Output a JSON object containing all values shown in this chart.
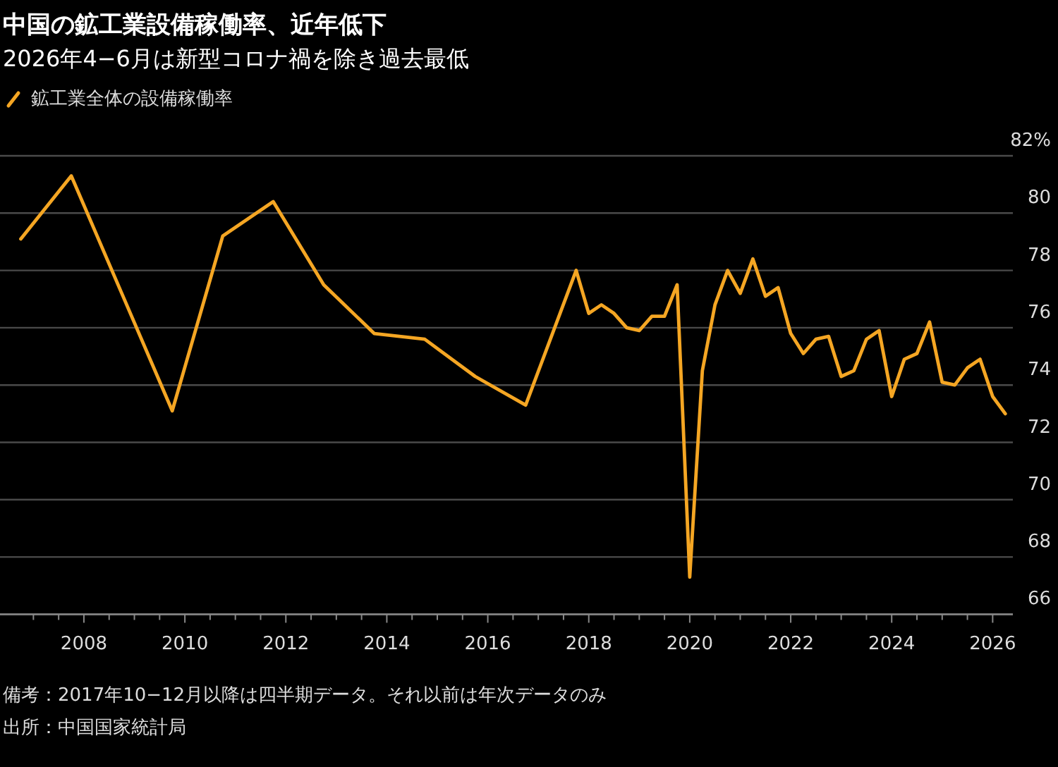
{
  "chart_data": {
    "type": "line",
    "title": "中国の鉱工業設備稼働率、近年低下",
    "subtitle": "2026年4−6月は新型コロナ禍を除き過去最低",
    "x": [
      2006.75,
      2007.75,
      2008.75,
      2009.75,
      2010.75,
      2011.75,
      2012.75,
      2013.75,
      2014.75,
      2015.75,
      2016.75,
      2017.75,
      2018,
      2018.25,
      2018.5,
      2018.75,
      2019,
      2019.25,
      2019.5,
      2019.75,
      2020,
      2020.25,
      2020.5,
      2020.75,
      2021,
      2021.25,
      2021.5,
      2021.75,
      2022,
      2022.25,
      2022.5,
      2022.75,
      2023,
      2023.25,
      2023.5,
      2023.75,
      2024,
      2024.25,
      2024.5,
      2024.75,
      2025,
      2025.25,
      2025.5,
      2025.75,
      2026,
      2026.25
    ],
    "series": [
      {
        "name": "鉱工業全体の設備稼働率",
        "color": "#f5a623",
        "values": [
          79.1,
          81.3,
          77.2,
          73.1,
          79.2,
          80.4,
          77.5,
          75.8,
          75.6,
          74.3,
          73.3,
          78.0,
          76.5,
          76.8,
          76.5,
          76.0,
          75.9,
          76.4,
          76.4,
          77.5,
          67.3,
          74.5,
          76.8,
          78.0,
          77.2,
          78.4,
          77.1,
          77.4,
          75.8,
          75.1,
          75.6,
          75.7,
          74.3,
          74.5,
          75.6,
          75.9,
          73.6,
          74.9,
          75.1,
          76.2,
          74.1,
          74.0,
          74.6,
          74.9,
          73.6,
          73.0
        ]
      }
    ],
    "xlim": [
      2006.45,
      2026.4
    ],
    "xticks": [
      {
        "value": 2007,
        "label": null
      },
      {
        "value": 2007.5,
        "label": null
      },
      2008,
      {
        "value": 2008.5,
        "label": null
      },
      {
        "value": 2009,
        "label": null
      },
      {
        "value": 2009.5,
        "label": null
      },
      2010,
      {
        "value": 2010.5,
        "label": null
      },
      {
        "value": 2011,
        "label": null
      },
      {
        "value": 2011.5,
        "label": null
      },
      2012,
      {
        "value": 2012.5,
        "label": null
      },
      {
        "value": 2013,
        "label": null
      },
      {
        "value": 2013.5,
        "label": null
      },
      2014,
      {
        "value": 2014.5,
        "label": null
      },
      {
        "value": 2015,
        "label": null
      },
      {
        "value": 2015.5,
        "label": null
      },
      2016,
      {
        "value": 2016.5,
        "label": null
      },
      {
        "value": 2017,
        "label": null
      },
      {
        "value": 2017.5,
        "label": null
      },
      2018,
      {
        "value": 2018.5,
        "label": null
      },
      {
        "value": 2019,
        "label": null
      },
      {
        "value": 2019.5,
        "label": null
      },
      2020,
      {
        "value": 2020.5,
        "label": null
      },
      {
        "value": 2021,
        "label": null
      },
      {
        "value": 2021.5,
        "label": null
      },
      2022,
      {
        "value": 2022.5,
        "label": null
      },
      {
        "value": 2023,
        "label": null
      },
      {
        "value": 2023.5,
        "label": null
      },
      2024,
      {
        "value": 2024.5,
        "label": null
      },
      {
        "value": 2025,
        "label": null
      },
      {
        "value": 2025.5,
        "label": null
      },
      2026
    ],
    "ylim": [
      66,
      82
    ],
    "yticks": [
      66,
      68,
      70,
      72,
      74,
      76,
      78,
      80,
      {
        "value": 82,
        "label": "82%"
      }
    ],
    "grid": "y",
    "legend": "top left",
    "line_style": "solid",
    "marker": "none",
    "annotations": [
      "備考：2017年10−12月以降は四半期データ。それ以前は年次データのみ",
      "出所：中国国家統計局"
    ]
  }
}
